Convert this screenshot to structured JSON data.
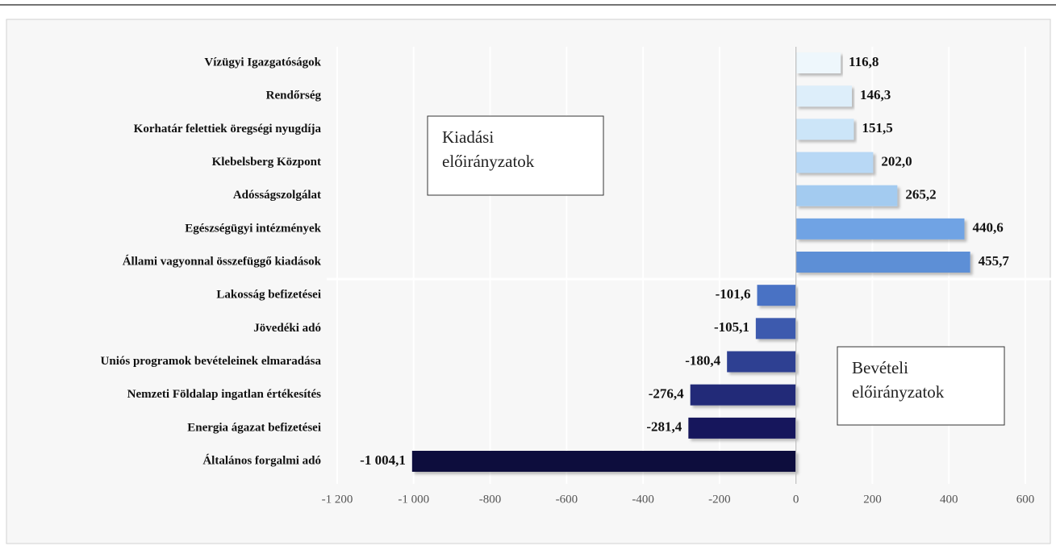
{
  "chart_data": {
    "type": "hbar",
    "categories": [
      "Vízügyi Igazgatóságok",
      "Rendőrség",
      "Korhatár felettiek öregségi nyugdíja",
      "Klebelsberg Központ",
      "Adósságszolgálat",
      "Egészségügyi intézmények",
      "Állami vagyonnal összefüggő kiadások",
      "Lakosság befizetései",
      "Jövedéki adó",
      "Uniós programok bevételeinek elmaradása",
      "Nemzeti Földalap ingatlan értékesítés",
      "Energia ágazat befizetései",
      "Általános forgalmi adó"
    ],
    "values": [
      116.8,
      146.3,
      151.5,
      202.0,
      265.2,
      440.6,
      455.7,
      -101.6,
      -105.1,
      -180.4,
      -276.4,
      -281.4,
      -1004.1
    ],
    "value_labels": [
      "116,8",
      "146,3",
      "151,5",
      "202,0",
      "265,2",
      "440,6",
      "455,7",
      "-101,6",
      "-105,1",
      "-180,4",
      "-276,4",
      "-281,4",
      "-1 004,1"
    ],
    "colors": [
      "#eef7fc",
      "#ddeefa",
      "#cce5f8",
      "#b8d8f5",
      "#a3cbf0",
      "#6fa3e4",
      "#5d8fd6",
      "#4a72c4",
      "#3c5aae",
      "#2e3f92",
      "#202a78",
      "#17175c",
      "#0d0a3c"
    ],
    "xlim": [
      -1200,
      600
    ],
    "xticks": [
      {
        "value": -1200,
        "label": "-1 200"
      },
      {
        "value": -1000,
        "label": "-1 000"
      },
      -800,
      -600,
      -400,
      -200,
      0,
      200,
      400,
      600
    ],
    "grid": true,
    "annotations": [
      [
        "Kiadási",
        "előirányzatok"
      ],
      [
        "Bevételi",
        "előirányzatok"
      ]
    ]
  }
}
